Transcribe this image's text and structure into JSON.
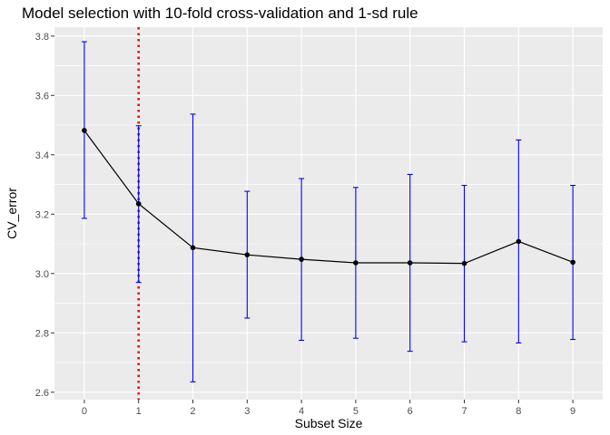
{
  "chart_data": {
    "type": "line",
    "title": "Model selection with 10-fold cross-validation and 1-sd rule",
    "xlabel": "Subset Size",
    "ylabel": "CV_error",
    "x": [
      0,
      1,
      2,
      3,
      4,
      5,
      6,
      7,
      8,
      9
    ],
    "x_tick_labels": [
      "0",
      "1",
      "2",
      "3",
      "4",
      "5",
      "6",
      "7",
      "8",
      "9"
    ],
    "y_ticks": [
      2.6,
      2.8,
      3.0,
      3.2,
      3.4,
      3.6,
      3.8
    ],
    "y_tick_labels": [
      "2.6",
      "2.8",
      "3.0",
      "3.2",
      "3.4",
      "3.6",
      "3.8"
    ],
    "xlim": [
      -0.55,
      9.55
    ],
    "ylim": [
      2.575,
      3.83
    ],
    "grid": true,
    "series": [
      {
        "values": [
          3.482,
          3.235,
          3.087,
          3.063,
          3.048,
          3.036,
          3.036,
          3.034,
          3.108,
          3.038
        ],
        "error_upper": [
          3.781,
          3.498,
          3.537,
          3.277,
          3.32,
          3.29,
          3.334,
          3.297,
          3.45,
          3.297
        ],
        "error_lower": [
          3.186,
          2.97,
          2.635,
          2.85,
          2.775,
          2.782,
          2.738,
          2.77,
          2.766,
          2.778
        ],
        "color": "#000000",
        "error_color": "#0000ff"
      }
    ],
    "vline": {
      "x": 1,
      "color": "#ff0000",
      "style": "dotted"
    },
    "panel_background": "#ebebeb",
    "grid_color": "#ffffff"
  }
}
